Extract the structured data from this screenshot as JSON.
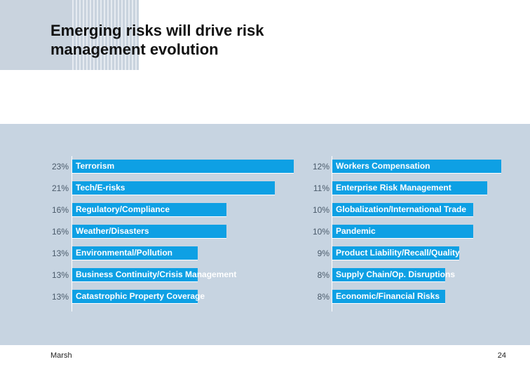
{
  "slide": {
    "title": "Emerging risks will drive risk\nmanagement evolution",
    "footer": "Marsh",
    "page_number": "24"
  },
  "colors": {
    "bar": "#0ea0e4",
    "panel": "#c7d4e1",
    "accent_block": "#c9d3de"
  },
  "chart_data": [
    {
      "type": "bar",
      "orientation": "horizontal",
      "categories": [
        "Terrorism",
        "Tech/E-risks",
        "Regulatory/Compliance",
        "Weather/Disasters",
        "Environmental/Pollution",
        "Business Continuity/Crisis Management",
        "Catastrophic Property Coverage"
      ],
      "values": [
        23,
        21,
        16,
        16,
        13,
        13,
        13
      ],
      "value_labels": [
        "23%",
        "21%",
        "16%",
        "16%",
        "13%",
        "13%",
        "13%"
      ],
      "xlim": [
        0,
        23
      ]
    },
    {
      "type": "bar",
      "orientation": "horizontal",
      "categories": [
        "Workers Compensation",
        "Enterprise Risk Management",
        "Globalization/International Trade",
        "Pandemic",
        "Product Liability/Recall/Quality",
        "Supply Chain/Op. Disruptions",
        "Economic/Financial Risks"
      ],
      "values": [
        12,
        11,
        10,
        10,
        9,
        8,
        8
      ],
      "value_labels": [
        "12%",
        "11%",
        "10%",
        "10%",
        "9%",
        "8%",
        "8%"
      ],
      "xlim": [
        0,
        12
      ]
    }
  ]
}
